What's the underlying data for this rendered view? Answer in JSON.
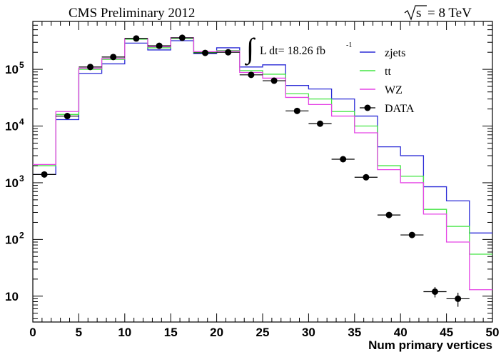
{
  "chart_data": {
    "type": "histogram",
    "title_left": "CMS Preliminary 2012",
    "energy": "= 8 TeV",
    "energy_symbol": "s",
    "lumi": "L dt= 18.26 fb",
    "lumi_exp": "-1",
    "xlabel": "Num primary vertices",
    "x_ticks": [
      "0",
      "5",
      "10",
      "15",
      "20",
      "25",
      "30",
      "35",
      "40",
      "45",
      "50"
    ],
    "xlim": [
      0,
      50
    ],
    "y_scale": "log",
    "ylim": [
      3.5,
      700000
    ],
    "y_tick_labels": [
      {
        "base": "10",
        "exp": "",
        "value": 10
      },
      {
        "base": "10",
        "exp": "2",
        "value": 100
      },
      {
        "base": "10",
        "exp": "3",
        "value": 1000
      },
      {
        "base": "10",
        "exp": "4",
        "value": 10000
      },
      {
        "base": "10",
        "exp": "5",
        "value": 100000
      }
    ],
    "bin_edges": [
      0,
      2.5,
      5,
      7.5,
      10,
      12.5,
      15,
      17.5,
      20,
      22.5,
      25,
      27.5,
      30,
      32.5,
      35,
      37.5,
      40,
      42.5,
      45,
      47.5,
      50
    ],
    "series": [
      {
        "name": "zjets",
        "color": "#2b2bd6",
        "style": "hist",
        "values": [
          1400,
          13000,
          85000,
          125000,
          290000,
          220000,
          320000,
          190000,
          240000,
          110000,
          120000,
          52000,
          45000,
          30000,
          15000,
          4300,
          3000,
          850,
          480,
          130
        ]
      },
      {
        "name": "tt",
        "color": "#44e544",
        "style": "hist",
        "values": [
          2000,
          16000,
          100000,
          150000,
          340000,
          240000,
          350000,
          200000,
          215000,
          95000,
          82000,
          37000,
          30000,
          18000,
          10000,
          2000,
          1300,
          340,
          170,
          55
        ]
      },
      {
        "name": "WZ",
        "color": "#e544e5",
        "style": "hist",
        "values": [
          2100,
          18000,
          105000,
          155000,
          350000,
          250000,
          360000,
          205000,
          210000,
          88000,
          70000,
          32000,
          24000,
          15000,
          7600,
          1700,
          1000,
          280,
          90,
          13
        ]
      },
      {
        "name": "DATA",
        "color": "#000000",
        "style": "points",
        "x": [
          1.25,
          3.75,
          6.25,
          8.75,
          11.25,
          13.75,
          16.25,
          18.75,
          21.25,
          23.75,
          26.25,
          28.75,
          31.25,
          33.75,
          36.25,
          38.75,
          41.25,
          43.75,
          46.25
        ],
        "values": [
          1400,
          15000,
          110000,
          165000,
          350000,
          260000,
          360000,
          195000,
          200000,
          80000,
          63000,
          18500,
          11000,
          2600,
          1250,
          270,
          120,
          12,
          9
        ],
        "errors": [
          0,
          0,
          0,
          0,
          0,
          0,
          0,
          0,
          0,
          0,
          0,
          0,
          0,
          0,
          0,
          0,
          0,
          2.5,
          2.5
        ]
      }
    ],
    "legend_position": "top-right",
    "grid": false
  }
}
